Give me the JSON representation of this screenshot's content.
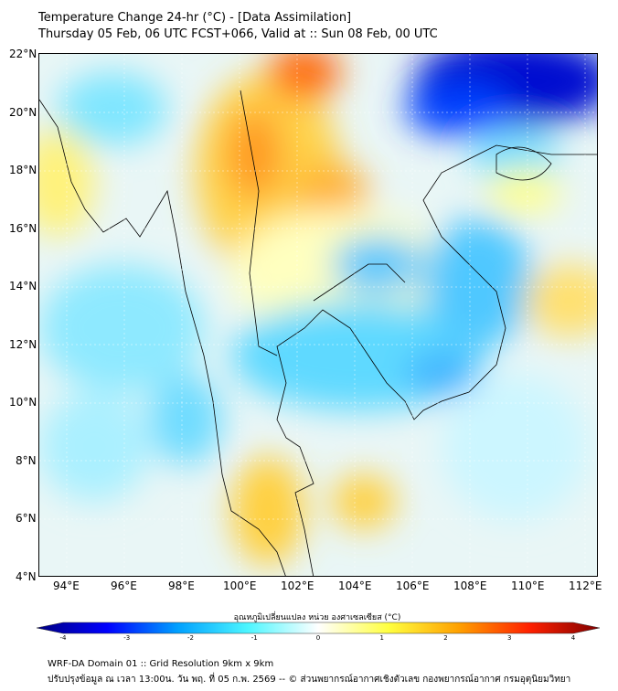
{
  "title": {
    "line1": "Temperature Change 24-hr (°C) - [Data Assimilation]",
    "line2": "Thursday 05 Feb, 06 UTC FCST+066, Valid at :: Sun 08 Feb, 00 UTC"
  },
  "map": {
    "lat_labels": [
      "22°N",
      "20°N",
      "18°N",
      "16°N",
      "14°N",
      "12°N",
      "10°N",
      "8°N",
      "6°N",
      "4°N"
    ],
    "lon_labels": [
      "94°E",
      "96°E",
      "98°E",
      "100°E",
      "102°E",
      "104°E",
      "106°E",
      "108°E",
      "110°E",
      "112°E"
    ]
  },
  "colorbar": {
    "label": "อุณหภูมิเปลี่ยนแปลง หน่วย องศาเซลเซียส (°C)",
    "ticks": [
      "-4",
      "-3",
      "-2",
      "-1",
      "0",
      "1",
      "2",
      "3",
      "4"
    ],
    "colors": [
      "#00007f",
      "#0000ff",
      "#00a0ff",
      "#4df6ff",
      "#ffffff",
      "#ffff40",
      "#ffa000",
      "#ff2000",
      "#7f0000"
    ]
  },
  "footer": {
    "line1": "WRF-DA Domain 01 :: Grid Resolution 9km x 9km",
    "line2": "ปรับปรุงข้อมูล ณ เวลา 13:00น. วัน พฤ. ที่ 05 ก.พ. 2569 -- © ส่วนพยากรณ์อากาศเชิงตัวเลข กองพยากรณ์อากาศ กรมอุตุนิยมวิทยา"
  }
}
